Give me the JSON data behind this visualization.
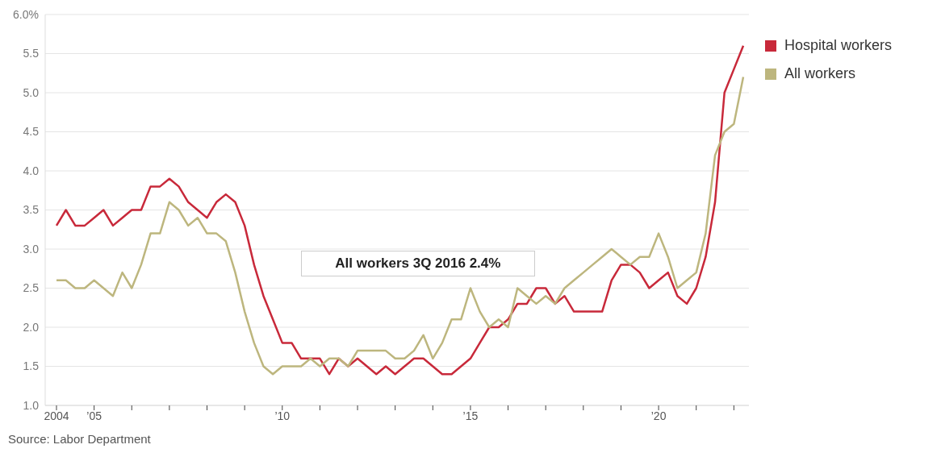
{
  "chart_data": {
    "type": "line",
    "x": [
      2004,
      2004.25,
      2004.5,
      2004.75,
      2005,
      2005.25,
      2005.5,
      2005.75,
      2006,
      2006.25,
      2006.5,
      2006.75,
      2007,
      2007.25,
      2007.5,
      2007.75,
      2008,
      2008.25,
      2008.5,
      2008.75,
      2009,
      2009.25,
      2009.5,
      2009.75,
      2010,
      2010.25,
      2010.5,
      2010.75,
      2011,
      2011.25,
      2011.5,
      2011.75,
      2012,
      2012.25,
      2012.5,
      2012.75,
      2013,
      2013.25,
      2013.5,
      2013.75,
      2014,
      2014.25,
      2014.5,
      2014.75,
      2015,
      2015.25,
      2015.5,
      2015.75,
      2016,
      2016.25,
      2016.5,
      2016.75,
      2017,
      2017.25,
      2017.5,
      2017.75,
      2018,
      2018.25,
      2018.5,
      2018.75,
      2019,
      2019.25,
      2019.5,
      2019.75,
      2020,
      2020.25,
      2020.5,
      2020.75,
      2021,
      2021.25,
      2021.5,
      2021.75,
      2022,
      2022.25
    ],
    "series": [
      {
        "name": "Hospital workers",
        "color": "#c8293a",
        "values": [
          3.3,
          3.5,
          3.3,
          3.3,
          3.4,
          3.5,
          3.3,
          3.4,
          3.5,
          3.5,
          3.8,
          3.8,
          3.9,
          3.8,
          3.6,
          3.5,
          3.4,
          3.6,
          3.7,
          3.6,
          3.3,
          2.8,
          2.4,
          2.1,
          1.8,
          1.8,
          1.6,
          1.6,
          1.6,
          1.4,
          1.6,
          1.5,
          1.6,
          1.5,
          1.4,
          1.5,
          1.4,
          1.5,
          1.6,
          1.6,
          1.5,
          1.4,
          1.4,
          1.5,
          1.6,
          1.8,
          2.0,
          2.0,
          2.1,
          2.3,
          2.3,
          2.5,
          2.5,
          2.3,
          2.4,
          2.2,
          2.2,
          2.2,
          2.2,
          2.6,
          2.8,
          2.8,
          2.7,
          2.5,
          2.6,
          2.7,
          2.4,
          2.3,
          2.5,
          2.9,
          3.6,
          5.0,
          5.3,
          5.6
        ]
      },
      {
        "name": "All workers",
        "color": "#bdb67e",
        "values": [
          2.6,
          2.6,
          2.5,
          2.5,
          2.6,
          2.5,
          2.4,
          2.7,
          2.5,
          2.8,
          3.2,
          3.2,
          3.6,
          3.5,
          3.3,
          3.4,
          3.2,
          3.2,
          3.1,
          2.7,
          2.2,
          1.8,
          1.5,
          1.4,
          1.5,
          1.5,
          1.5,
          1.6,
          1.5,
          1.6,
          1.6,
          1.5,
          1.7,
          1.7,
          1.7,
          1.7,
          1.6,
          1.6,
          1.7,
          1.9,
          1.6,
          1.8,
          2.1,
          2.1,
          2.5,
          2.2,
          2.0,
          2.1,
          2.0,
          2.5,
          2.4,
          2.3,
          2.4,
          2.3,
          2.5,
          2.6,
          2.7,
          2.8,
          2.9,
          3.0,
          2.9,
          2.8,
          2.9,
          2.9,
          3.2,
          2.9,
          2.5,
          2.6,
          2.7,
          3.2,
          4.2,
          4.5,
          4.6,
          5.2
        ]
      }
    ],
    "xlim": [
      2003.7,
      2022.4
    ],
    "xticks": [
      {
        "value": 2004,
        "label": "2004"
      },
      {
        "value": 2005,
        "label": "’05"
      },
      {
        "value": 2006,
        "label": null
      },
      {
        "value": 2007,
        "label": null
      },
      {
        "value": 2008,
        "label": null
      },
      {
        "value": 2009,
        "label": null
      },
      {
        "value": 2010,
        "label": "’10"
      },
      {
        "value": 2011,
        "label": null
      },
      {
        "value": 2012,
        "label": null
      },
      {
        "value": 2013,
        "label": null
      },
      {
        "value": 2014,
        "label": null
      },
      {
        "value": 2015,
        "label": "’15"
      },
      {
        "value": 2016,
        "label": null
      },
      {
        "value": 2017,
        "label": null
      },
      {
        "value": 2018,
        "label": null
      },
      {
        "value": 2019,
        "label": null
      },
      {
        "value": 2020,
        "label": "’20"
      },
      {
        "value": 2021,
        "label": null
      },
      {
        "value": 2022,
        "label": null
      }
    ],
    "ylim": [
      1.0,
      6.0
    ],
    "yticks": [
      {
        "value": 1.0,
        "label": "1.0"
      },
      {
        "value": 1.5,
        "label": "1.5"
      },
      {
        "value": 2.0,
        "label": "2.0"
      },
      {
        "value": 2.5,
        "label": "2.5"
      },
      {
        "value": 3.0,
        "label": "3.0"
      },
      {
        "value": 3.5,
        "label": "3.5"
      },
      {
        "value": 4.0,
        "label": "4.0"
      },
      {
        "value": 4.5,
        "label": "4.5"
      },
      {
        "value": 5.0,
        "label": "5.0"
      },
      {
        "value": 5.5,
        "label": "5.5"
      },
      {
        "value": 6.0,
        "label": "6.0%"
      }
    ],
    "grid": "y",
    "legend": "top right",
    "marker": "none",
    "annotations": [
      {
        "text": "All workers 3Q 2016 2.4%",
        "x": 2016.5,
        "y": 2.4
      },
      "Source: Labor Department"
    ]
  }
}
